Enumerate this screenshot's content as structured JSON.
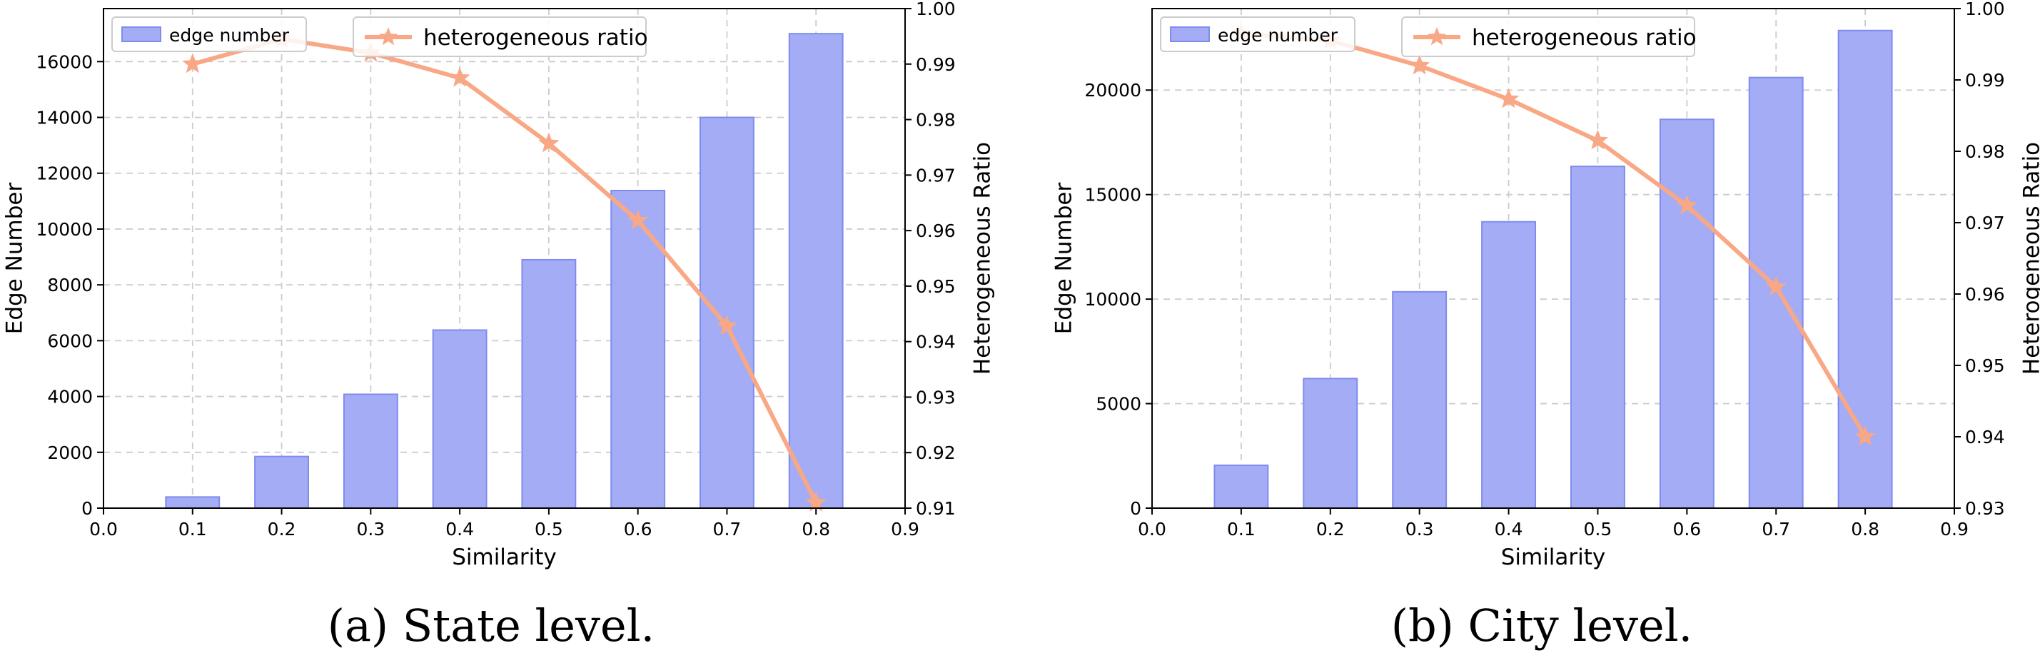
{
  "colors": {
    "bar_fill": "#a3acf4",
    "bar_edge": "#7f8cee",
    "line": "#f9a886",
    "grid": "#cccccc"
  },
  "chart_data": [
    {
      "type": "bar",
      "caption": "(a)  State level.",
      "xlabel": "Similarity",
      "ylabel": "Edge Number",
      "y2label": "Heterogeneous Ratio",
      "x": [
        0.1,
        0.2,
        0.3,
        0.4,
        0.5,
        0.6,
        0.7,
        0.8
      ],
      "xlim": [
        0.0,
        0.9
      ],
      "xticks": [
        "0.0",
        "0.1",
        "0.2",
        "0.3",
        "0.4",
        "0.5",
        "0.6",
        "0.7",
        "0.8",
        "0.9"
      ],
      "ylim": [
        0,
        17900
      ],
      "yticks": [
        "0",
        "2000",
        "4000",
        "6000",
        "8000",
        "10000",
        "12000",
        "14000",
        "16000"
      ],
      "y2lim": [
        0.91,
        1.0
      ],
      "y2ticks": [
        "0.91",
        "0.92",
        "0.93",
        "0.94",
        "0.95",
        "0.96",
        "0.97",
        "0.98",
        "0.99",
        "1.00"
      ],
      "grid": true,
      "legend_bar": "edge number",
      "legend_line": "heterogeneous ratio",
      "series": [
        {
          "name": "edge number",
          "type": "bar",
          "axis": "left",
          "values": [
            400,
            1850,
            4080,
            6380,
            8900,
            11380,
            14000,
            17000
          ]
        },
        {
          "name": "heterogeneous ratio",
          "type": "line",
          "marker": "star",
          "axis": "right",
          "values": [
            0.99,
            0.9945,
            0.992,
            0.9875,
            0.9757,
            0.9618,
            0.9428,
            0.911
          ]
        }
      ]
    },
    {
      "type": "bar",
      "caption": "(b)  City level.",
      "xlabel": "Similarity",
      "ylabel": "Edge Number",
      "y2label": "Heterogeneous Ratio",
      "x": [
        0.1,
        0.2,
        0.3,
        0.4,
        0.5,
        0.6,
        0.7,
        0.8
      ],
      "xlim": [
        0.0,
        0.9
      ],
      "xticks": [
        "0.0",
        "0.1",
        "0.2",
        "0.3",
        "0.4",
        "0.5",
        "0.6",
        "0.7",
        "0.8",
        "0.9"
      ],
      "ylim": [
        0,
        23900
      ],
      "yticks": [
        "0",
        "5000",
        "10000",
        "15000",
        "20000"
      ],
      "y2lim": [
        0.93,
        1.0
      ],
      "y2ticks": [
        "0.93",
        "0.94",
        "0.95",
        "0.96",
        "0.97",
        "0.98",
        "0.99",
        "1.00"
      ],
      "grid": true,
      "legend_bar": "edge number",
      "legend_line": "heterogeneous ratio",
      "series": [
        {
          "name": "edge number",
          "type": "bar",
          "axis": "left",
          "values": [
            2050,
            6200,
            10350,
            13700,
            16350,
            18600,
            20600,
            22850
          ]
        },
        {
          "name": "heterogeneous ratio",
          "type": "line",
          "marker": "star",
          "axis": "right",
          "values": [
            0.9965,
            0.9955,
            0.992,
            0.9873,
            0.9815,
            0.9724,
            0.961,
            0.94
          ]
        }
      ]
    }
  ]
}
